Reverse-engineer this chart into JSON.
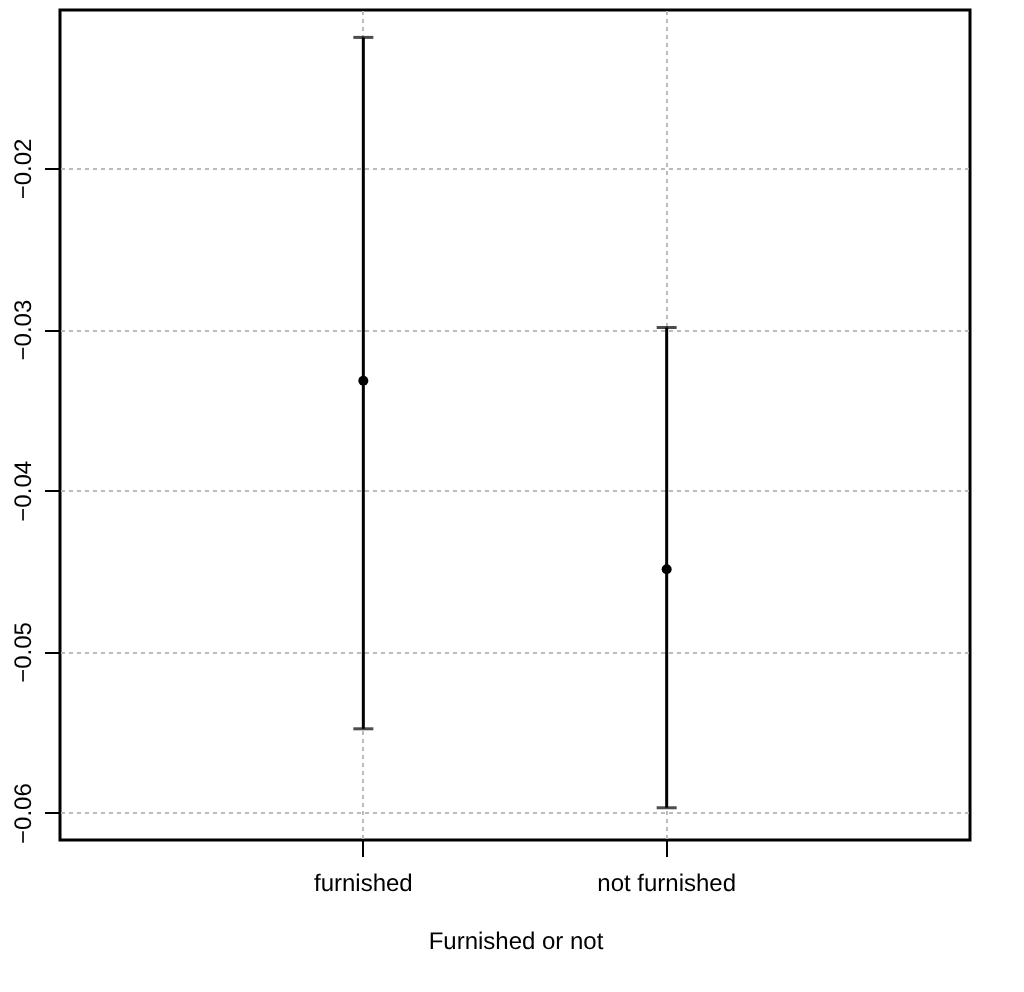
{
  "chart_data": {
    "type": "scatter",
    "xlabel": "Furnished or not",
    "categories": [
      "furnished",
      "not furnished"
    ],
    "series": [
      {
        "color": "#000000",
        "values": [
          -0.0332,
          -0.0449
        ],
        "errors": [
          [
            -0.0548,
            -0.0119
          ],
          [
            -0.0597,
            -0.0299
          ]
        ]
      }
    ],
    "ylim": [
      -0.0617,
      -0.0102
    ],
    "yticks": [
      -0.06,
      -0.05,
      -0.04,
      -0.03,
      -0.02
    ],
    "grid": true,
    "marker": "circle"
  }
}
